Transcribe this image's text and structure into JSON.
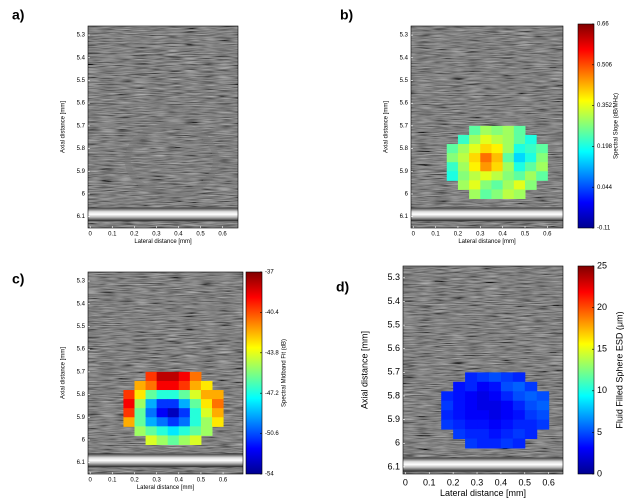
{
  "chart_data": [
    {
      "type": "heatmap",
      "panel_label": "a)",
      "xlabel": "Lateral distance [mm]",
      "ylabel": "Axial distance [mm]",
      "xlim": [
        -0.01,
        0.67
      ],
      "ylim": [
        5.26,
        6.15
      ],
      "y_inverted": true,
      "xticks": [
        0,
        0.1,
        0.2,
        0.3,
        0.4,
        0.5,
        0.6
      ],
      "yticks": [
        5.3,
        5.4,
        5.5,
        5.6,
        5.7,
        5.8,
        5.9,
        6,
        6.1
      ]
    },
    {
      "type": "heatmap",
      "panel_label": "b)",
      "xlabel": "Lateral distance [mm]",
      "ylabel": "Axial distance [mm]",
      "xlim": [
        -0.01,
        0.67
      ],
      "ylim": [
        5.26,
        6.15
      ],
      "y_inverted": true,
      "xticks": [
        0,
        0.1,
        0.2,
        0.3,
        0.4,
        0.5,
        0.6
      ],
      "yticks": [
        5.3,
        5.4,
        5.5,
        5.6,
        5.7,
        5.8,
        5.9,
        6,
        6.1
      ],
      "colorbar": {
        "label": "Spectral Slope (dB/MHz)",
        "lim": [
          -0.11,
          0.66
        ],
        "ticks": [
          -0.11,
          0.044,
          0.198,
          0.352,
          0.506,
          0.66
        ]
      },
      "cell_x": [
        0.175,
        0.225,
        0.275,
        0.325,
        0.375,
        0.425,
        0.475,
        0.525,
        0.575
      ],
      "cell_y": [
        5.72,
        5.76,
        5.8,
        5.84,
        5.88,
        5.92,
        5.96,
        6.0
      ],
      "z": [
        [
          null,
          null,
          0.25,
          0.3,
          0.28,
          0.3,
          0.25,
          null,
          null
        ],
        [
          null,
          0.22,
          0.3,
          0.35,
          0.32,
          0.3,
          0.25,
          0.2,
          null
        ],
        [
          0.25,
          0.3,
          0.35,
          0.4,
          0.38,
          0.3,
          0.2,
          0.22,
          0.25
        ],
        [
          0.28,
          0.32,
          0.4,
          0.48,
          0.42,
          0.25,
          0.15,
          0.2,
          0.28
        ],
        [
          0.22,
          0.3,
          0.38,
          0.45,
          0.4,
          0.3,
          0.2,
          0.25,
          0.3
        ],
        [
          0.2,
          0.28,
          0.32,
          0.35,
          0.32,
          0.28,
          0.25,
          0.3,
          0.25
        ],
        [
          null,
          0.3,
          0.35,
          0.28,
          0.25,
          0.3,
          0.35,
          0.28,
          null
        ],
        [
          null,
          null,
          0.3,
          0.25,
          0.28,
          0.32,
          0.3,
          null,
          null
        ]
      ]
    },
    {
      "type": "heatmap",
      "panel_label": "c)",
      "xlabel": "Lateral distance [mm]",
      "ylabel": "Axial distance [mm]",
      "xlim": [
        -0.01,
        0.69
      ],
      "ylim": [
        5.26,
        6.15
      ],
      "y_inverted": true,
      "xticks": [
        0,
        0.1,
        0.2,
        0.3,
        0.4,
        0.5,
        0.6
      ],
      "yticks": [
        5.3,
        5.4,
        5.5,
        5.6,
        5.7,
        5.8,
        5.9,
        6,
        6.1
      ],
      "colorbar": {
        "label": "Spectral Midband Fit (dB)",
        "lim": [
          -54,
          -37
        ],
        "ticks": [
          -54,
          -50.6,
          -47.2,
          -43.8,
          -40.4,
          -37
        ]
      },
      "cell_x": [
        0.175,
        0.225,
        0.275,
        0.325,
        0.375,
        0.425,
        0.475,
        0.525,
        0.575
      ],
      "cell_y": [
        5.72,
        5.76,
        5.8,
        5.84,
        5.88,
        5.92,
        5.96,
        6.0
      ],
      "z": [
        [
          null,
          null,
          -40,
          -38,
          -38,
          -39,
          -41,
          null,
          null
        ],
        [
          null,
          -42,
          -41,
          -39,
          -39,
          -40,
          -42,
          -43,
          null
        ],
        [
          -40,
          -43,
          -46,
          -47,
          -47,
          -46,
          -44,
          -42,
          -42
        ],
        [
          -39,
          -45,
          -49,
          -51,
          -51,
          -49,
          -46,
          -43,
          -41
        ],
        [
          -40,
          -46,
          -50,
          -52,
          -53,
          -51,
          -47,
          -44,
          -42
        ],
        [
          -42,
          -46,
          -49,
          -50,
          -51,
          -50,
          -47,
          -45,
          -43
        ],
        [
          null,
          -45,
          -46,
          -47,
          -48,
          -47,
          -46,
          -45,
          null
        ],
        [
          null,
          null,
          -44,
          -45,
          -46,
          -45,
          -44,
          null,
          null
        ]
      ]
    },
    {
      "type": "heatmap",
      "panel_label": "d)",
      "xlabel": "Lateral distance [mm]",
      "ylabel": "Axial distance [mm]",
      "xlim": [
        -0.01,
        0.66
      ],
      "ylim": [
        5.25,
        6.13
      ],
      "y_inverted": true,
      "xticks": [
        0,
        0.1,
        0.2,
        0.3,
        0.4,
        0.5,
        0.6
      ],
      "yticks": [
        5.3,
        5.4,
        5.5,
        5.6,
        5.7,
        5.8,
        5.9,
        6,
        6.1
      ],
      "colorbar": {
        "label": "Fluid Filled Sphere ESD (μm)",
        "lim": [
          0,
          25
        ],
        "ticks": [
          0,
          5,
          10,
          15,
          20,
          25
        ]
      },
      "cell_x": [
        0.175,
        0.225,
        0.275,
        0.325,
        0.375,
        0.425,
        0.475,
        0.525,
        0.575
      ],
      "cell_y": [
        5.72,
        5.76,
        5.8,
        5.84,
        5.88,
        5.92,
        5.96,
        6.0
      ],
      "z": [
        [
          null,
          null,
          4,
          4.5,
          5,
          4.5,
          4,
          null,
          null
        ],
        [
          null,
          3.5,
          4,
          3,
          3.5,
          5,
          5.5,
          4.5,
          null
        ],
        [
          4,
          3.5,
          3,
          2.5,
          3,
          4,
          5,
          5.5,
          5
        ],
        [
          4.5,
          3.5,
          3,
          2.5,
          2.5,
          3,
          4,
          5,
          5.5
        ],
        [
          4,
          3.5,
          3,
          3,
          2.5,
          3,
          3.5,
          4.5,
          5
        ],
        [
          4.5,
          4,
          3.5,
          3.5,
          3,
          3.5,
          4,
          4,
          4.5
        ],
        [
          null,
          4.5,
          4,
          4,
          3.5,
          4,
          4.5,
          4,
          null
        ],
        [
          null,
          null,
          4.5,
          4,
          4,
          4.5,
          4,
          null,
          null
        ]
      ]
    }
  ]
}
